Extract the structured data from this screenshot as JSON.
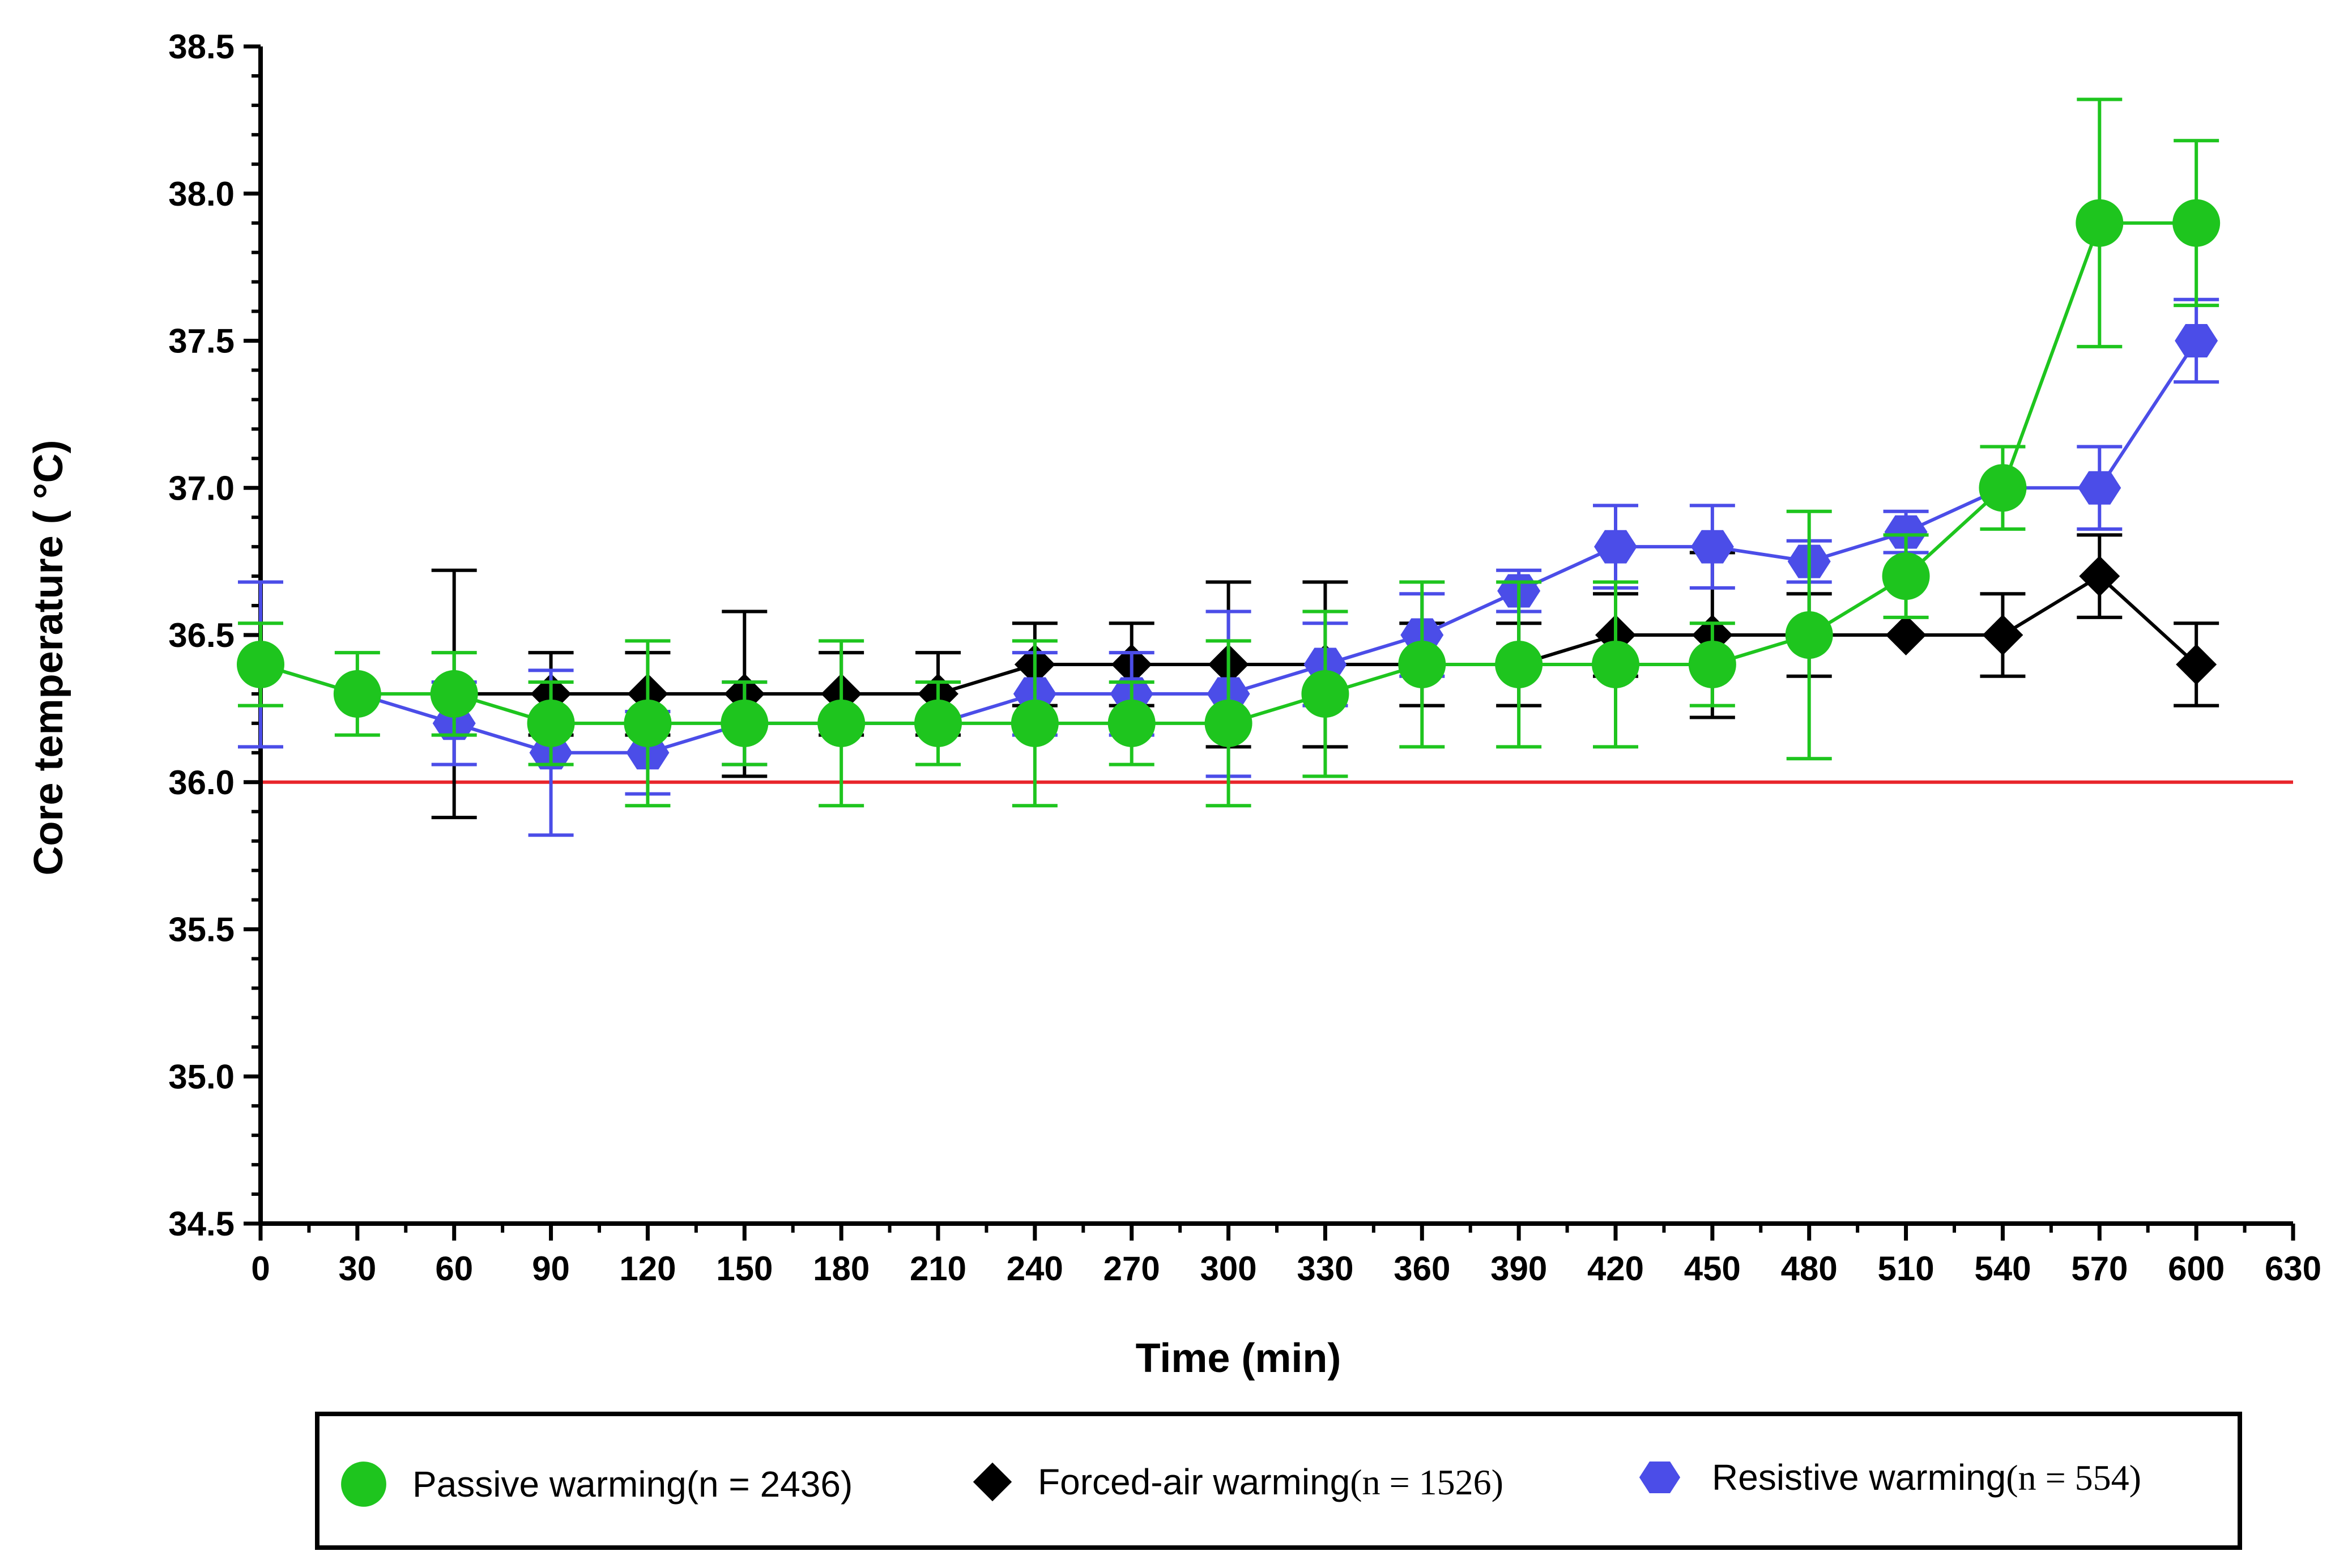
{
  "chart_data": {
    "type": "line",
    "title": "",
    "xlabel": "Time (min)",
    "ylabel": "Core temperature ( °C)",
    "xlim": [
      0,
      630
    ],
    "ylim": [
      34.5,
      38.5
    ],
    "x_ticks": [
      "0",
      "30",
      "60",
      "90",
      "120",
      "150",
      "180",
      "210",
      "240",
      "270",
      "300",
      "330",
      "360",
      "390",
      "420",
      "450",
      "480",
      "510",
      "540",
      "570",
      "600",
      "630"
    ],
    "y_ticks": [
      "34.5",
      "35.0",
      "35.5",
      "36.0",
      "36.5",
      "37.0",
      "37.5",
      "38.0",
      "38.5"
    ],
    "reference_line": {
      "y": 36.0,
      "color": "#e8252b"
    },
    "legend_position": "bottom",
    "series": [
      {
        "key": "forced",
        "name": "Forced-air warming",
        "n_label": "(n = 1526)",
        "color": "#000000",
        "marker": "diamond",
        "x": [
          60,
          90,
          120,
          150,
          180,
          210,
          240,
          270,
          300,
          330,
          360,
          390,
          420,
          450,
          480,
          510,
          540,
          570,
          600
        ],
        "values": [
          36.3,
          36.3,
          36.3,
          36.3,
          36.3,
          36.3,
          36.4,
          36.4,
          36.4,
          36.4,
          36.4,
          36.4,
          36.5,
          36.5,
          36.5,
          36.5,
          36.5,
          36.7,
          36.4
        ],
        "error_low": [
          35.88,
          36.16,
          36.16,
          36.02,
          36.16,
          36.16,
          36.26,
          36.26,
          36.12,
          36.12,
          36.26,
          36.26,
          36.36,
          36.22,
          36.36,
          36.5,
          36.36,
          36.56,
          36.26
        ],
        "error_high": [
          36.72,
          36.44,
          36.44,
          36.58,
          36.44,
          36.44,
          36.54,
          36.54,
          36.68,
          36.68,
          36.54,
          36.54,
          36.64,
          36.78,
          36.64,
          36.5,
          36.64,
          36.84,
          36.54
        ]
      },
      {
        "key": "resistive",
        "name": "Resistive warming",
        "n_label": "(n = 554)",
        "color": "#4b4de8",
        "marker": "hexagon",
        "x": [
          0,
          30,
          60,
          90,
          120,
          150,
          180,
          210,
          240,
          270,
          300,
          330,
          360,
          390,
          420,
          450,
          480,
          510,
          540,
          570,
          600
        ],
        "values": [
          36.4,
          36.3,
          36.2,
          36.1,
          36.1,
          36.2,
          36.2,
          36.2,
          36.3,
          36.3,
          36.3,
          36.4,
          36.5,
          36.65,
          36.8,
          36.8,
          36.75,
          36.85,
          37.0,
          37.0,
          37.5
        ],
        "error_low": [
          36.12,
          36.3,
          36.06,
          35.82,
          35.96,
          36.06,
          36.2,
          36.2,
          36.16,
          36.16,
          36.02,
          36.26,
          36.36,
          36.58,
          36.66,
          36.66,
          36.68,
          36.78,
          37.0,
          36.86,
          37.36
        ],
        "error_high": [
          36.68,
          36.3,
          36.34,
          36.38,
          36.24,
          36.34,
          36.2,
          36.2,
          36.44,
          36.44,
          36.58,
          36.54,
          36.64,
          36.72,
          36.94,
          36.94,
          36.82,
          36.92,
          37.0,
          37.14,
          37.64
        ]
      },
      {
        "key": "passive",
        "name": "Passive warming",
        "n_label": "(n = 2436)",
        "color": "#1ec51e",
        "marker": "circle",
        "x": [
          0,
          30,
          60,
          90,
          120,
          150,
          180,
          210,
          240,
          270,
          300,
          330,
          360,
          390,
          420,
          450,
          480,
          510,
          540,
          570,
          600
        ],
        "values": [
          36.4,
          36.3,
          36.3,
          36.2,
          36.2,
          36.2,
          36.2,
          36.2,
          36.2,
          36.2,
          36.2,
          36.3,
          36.4,
          36.4,
          36.4,
          36.4,
          36.5,
          36.7,
          37.0,
          37.9,
          37.9
        ],
        "error_low": [
          36.26,
          36.16,
          36.16,
          36.06,
          35.92,
          36.06,
          35.92,
          36.06,
          35.92,
          36.06,
          35.92,
          36.02,
          36.12,
          36.12,
          36.12,
          36.26,
          36.08,
          36.56,
          36.86,
          37.48,
          37.62
        ],
        "error_high": [
          36.54,
          36.44,
          36.44,
          36.34,
          36.48,
          36.34,
          36.48,
          36.34,
          36.48,
          36.34,
          36.48,
          36.58,
          36.68,
          36.68,
          36.68,
          36.54,
          36.92,
          36.84,
          37.14,
          38.32,
          38.18
        ]
      }
    ],
    "legend": [
      {
        "key": "passive",
        "label": "Passive warming",
        "n_label": "(n = 2436)"
      },
      {
        "key": "forced",
        "label": "Forced-air warming",
        "n_label": "(n = 1526)"
      },
      {
        "key": "resistive",
        "label": "Resistive warming",
        "n_label": "(n = 554)"
      }
    ]
  }
}
